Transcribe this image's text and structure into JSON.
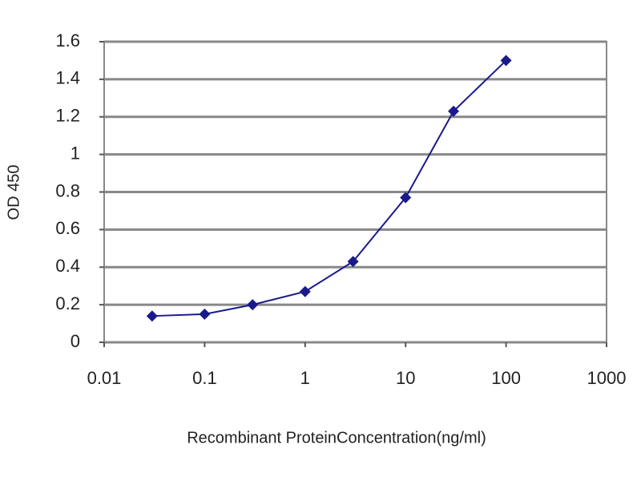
{
  "chart_data": {
    "type": "line",
    "x_label": "Recombinant ProteinConcentration(ng/ml)",
    "y_label": "OD 450",
    "xlog": true,
    "x": [
      0.03,
      0.1,
      0.3,
      1,
      3,
      10,
      30,
      100
    ],
    "series": [
      {
        "color": "#1a1a8c",
        "values": [
          0.14,
          0.15,
          0.2,
          0.27,
          0.43,
          0.77,
          1.23,
          1.5
        ]
      }
    ],
    "xlim": [
      0.01,
      1000
    ],
    "xticks": [
      0.01,
      0.1,
      1,
      10,
      100,
      1000
    ],
    "ylim": [
      0,
      1.6
    ],
    "yticks": [
      0,
      0.2,
      0.4,
      0.6,
      0.8,
      1,
      1.2,
      1.4,
      1.6
    ],
    "grid": true
  }
}
